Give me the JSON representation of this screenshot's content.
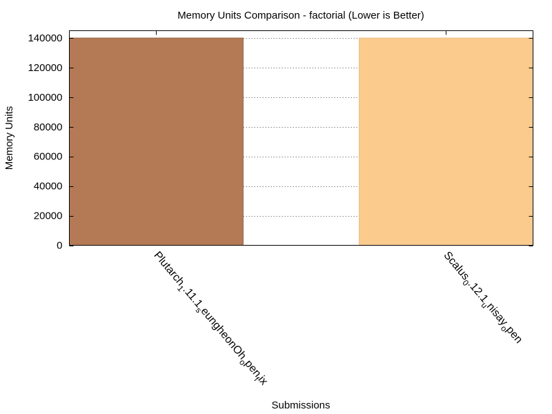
{
  "chart_data": {
    "type": "bar",
    "title": "Memory Units Comparison - factorial (Lower is Better)",
    "xlabel": "Submissions",
    "ylabel": "Memory Units",
    "categories": [
      "Plutarch_1.11.1_seungheonOh_open_fix",
      "Scalus_0.12.1_unisay_open"
    ],
    "values": [
      140000,
      140000
    ],
    "bar_colors": [
      "#b47a55",
      "#fbcb8e"
    ],
    "ylim": [
      0,
      140000
    ],
    "yticks": [
      0,
      20000,
      40000,
      60000,
      80000,
      100000,
      120000,
      140000
    ],
    "ytick_labels": [
      "0",
      "20000",
      "40000",
      "60000",
      "80000",
      "100000",
      "120000",
      "140000"
    ],
    "grid": true,
    "legend": false
  }
}
